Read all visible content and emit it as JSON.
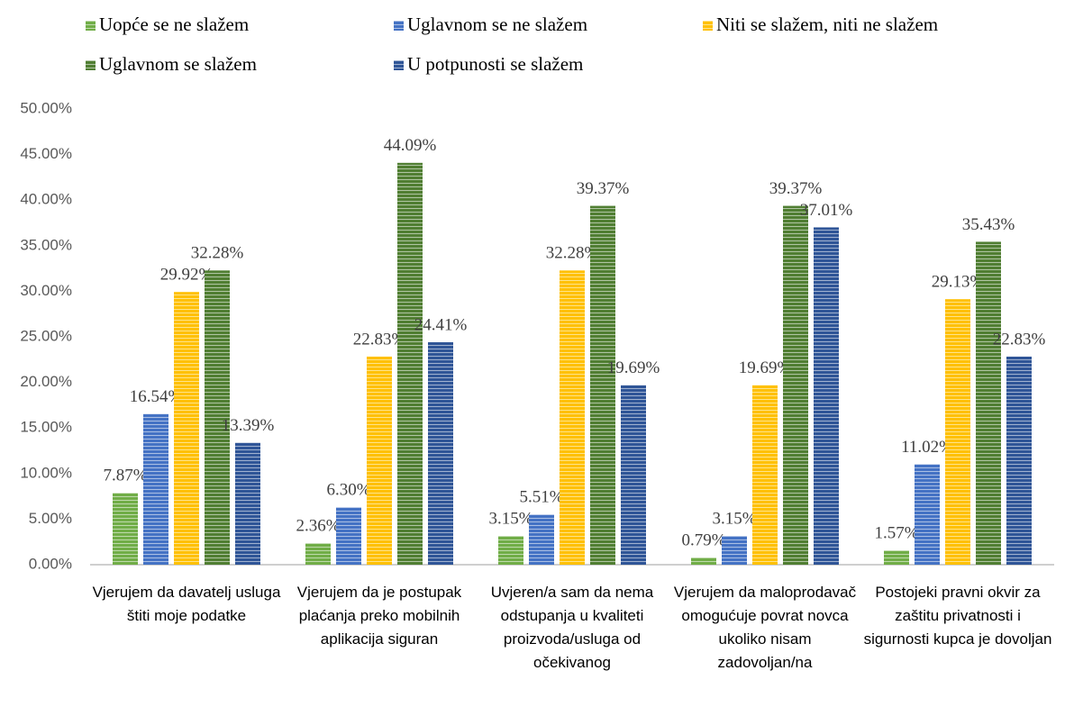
{
  "chart_data": {
    "type": "bar",
    "categories": [
      "Vjerujem da davatelj usluga štiti moje podatke",
      "Vjerujem da je postupak plaćanja preko mobilnih aplikacija siguran",
      "Uvjeren/a sam da nema odstupanja u kvaliteti proizvoda/usluga od očekivanog",
      "Vjerujem da maloprodavač omogućuje povrat novca ukoliko nisam zadovoljan/na",
      "Postojeki pravni okvir za zaštitu privatnosti i sigurnosti kupca je dovoljan"
    ],
    "series": [
      {
        "name": "Uopće se ne slažem",
        "color": "#70ad47",
        "values": [
          7.87,
          2.36,
          3.15,
          0.79,
          1.57
        ],
        "value_labels": [
          "7.87%",
          "2.36%",
          "3.15%",
          "0.79%",
          "1.57%"
        ]
      },
      {
        "name": "Uglavnom se ne slažem",
        "color": "#4472c4",
        "values": [
          16.54,
          6.3,
          5.51,
          3.15,
          11.02
        ],
        "value_labels": [
          "16.54%",
          "6.30%",
          "5.51%",
          "3.15%",
          "11.02%"
        ]
      },
      {
        "name": "Niti se slažem, niti ne slažem",
        "color": "#ffc000",
        "values": [
          29.92,
          22.83,
          32.28,
          19.69,
          29.13
        ],
        "value_labels": [
          "29.92%",
          "22.83%",
          "32.28%",
          "19.69%",
          "29.13%"
        ]
      },
      {
        "name": "Uglavnom se slažem",
        "color": "#507e32",
        "values": [
          32.28,
          44.09,
          39.37,
          39.37,
          35.43
        ],
        "value_labels": [
          "32.28%",
          "44.09%",
          "39.37%",
          "39.37%",
          "35.43%"
        ]
      },
      {
        "name": "U potpunosti se slažem",
        "color": "#2f5597",
        "values": [
          13.39,
          24.41,
          19.69,
          37.01,
          22.83
        ],
        "value_labels": [
          "13.39%",
          "24.41%",
          "19.69%",
          "37.01%",
          "22.83%"
        ]
      }
    ],
    "ylim": [
      0,
      50
    ],
    "yticks": [
      {
        "value": 0,
        "label": "0.00%"
      },
      {
        "value": 5,
        "label": "5.00%"
      },
      {
        "value": 10,
        "label": "10.00%"
      },
      {
        "value": 15,
        "label": "15.00%"
      },
      {
        "value": 20,
        "label": "20.00%"
      },
      {
        "value": 25,
        "label": "25.00%"
      },
      {
        "value": 30,
        "label": "30.00%"
      },
      {
        "value": 35,
        "label": "35.00%"
      },
      {
        "value": 40,
        "label": "40.00%"
      },
      {
        "value": 45,
        "label": "45.00%"
      },
      {
        "value": 50,
        "label": "50.00%"
      }
    ],
    "grid": false
  }
}
